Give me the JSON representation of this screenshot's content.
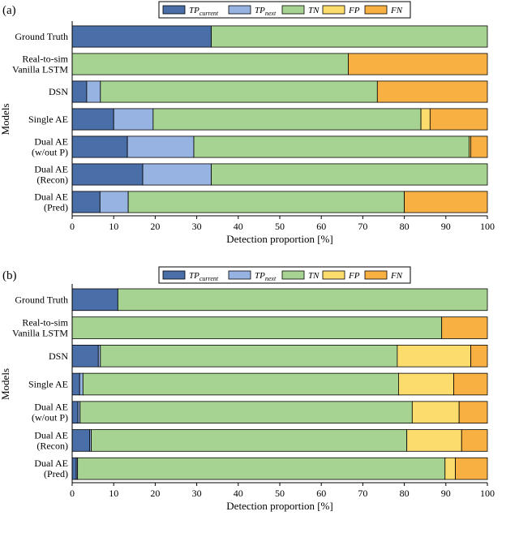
{
  "chart_data": [
    {
      "type": "bar",
      "orientation": "horizontal",
      "stacked": true,
      "panel_label": "(a)",
      "xlabel": "Detection proportion [%]",
      "ylabel": "Models",
      "xlim": [
        0,
        100
      ],
      "xticks": [
        "0",
        "10",
        "20",
        "30",
        "40",
        "50",
        "60",
        "70",
        "80",
        "90",
        "100"
      ],
      "legend": {
        "placement": "top-center",
        "entries": [
          {
            "main": "TP",
            "sub": "current"
          },
          {
            "main": "TP",
            "sub": "next"
          },
          {
            "main": "TN",
            "sub": ""
          },
          {
            "main": "FP",
            "sub": ""
          },
          {
            "main": "FN",
            "sub": ""
          }
        ]
      },
      "categories": [
        [
          "Ground Truth"
        ],
        [
          "Real-to-sim",
          "Vanilla LSTM"
        ],
        [
          "DSN"
        ],
        [
          "Single AE"
        ],
        [
          "Dual AE",
          "(w/out P)"
        ],
        [
          "Dual AE",
          "(Recon)"
        ],
        [
          "Dual AE",
          "(Pred)"
        ]
      ],
      "series": [
        {
          "name": "TP current",
          "values": [
            33.5,
            0,
            3.5,
            10,
            13.3,
            17,
            6.7
          ]
        },
        {
          "name": "TP next",
          "values": [
            0,
            0,
            3.3,
            9.5,
            16,
            16.5,
            6.8
          ]
        },
        {
          "name": "TN",
          "values": [
            66.5,
            66.5,
            66.7,
            64.5,
            66.3,
            66.5,
            66.5
          ]
        },
        {
          "name": "FP",
          "values": [
            0,
            0,
            0,
            2.2,
            0.4,
            0,
            0
          ]
        },
        {
          "name": "FN",
          "values": [
            0,
            33.5,
            26.5,
            13.8,
            4,
            0,
            20
          ]
        }
      ]
    },
    {
      "type": "bar",
      "orientation": "horizontal",
      "stacked": true,
      "panel_label": "(b)",
      "xlabel": "Detection proportion [%]",
      "ylabel": "Models",
      "xlim": [
        0,
        100
      ],
      "xticks": [
        "0",
        "10",
        "20",
        "30",
        "40",
        "50",
        "60",
        "70",
        "80",
        "90",
        "100"
      ],
      "legend": {
        "placement": "top-center",
        "entries": [
          {
            "main": "TP",
            "sub": "current"
          },
          {
            "main": "TP",
            "sub": "next"
          },
          {
            "main": "TN",
            "sub": ""
          },
          {
            "main": "FP",
            "sub": ""
          },
          {
            "main": "FN",
            "sub": ""
          }
        ]
      },
      "categories": [
        [
          "Ground Truth"
        ],
        [
          "Real-to-sim",
          "Vanilla LSTM"
        ],
        [
          "DSN"
        ],
        [
          "Single AE"
        ],
        [
          "Dual AE",
          "(w/out P)"
        ],
        [
          "Dual AE",
          "(Recon)"
        ],
        [
          "Dual AE",
          "(Pred)"
        ]
      ],
      "series": [
        {
          "name": "TP current",
          "values": [
            11,
            0,
            6.3,
            1.8,
            1.4,
            4.2,
            1
          ]
        },
        {
          "name": "TP next",
          "values": [
            0,
            0,
            0.5,
            0.8,
            0.5,
            0.4,
            0.3
          ]
        },
        {
          "name": "TN",
          "values": [
            89,
            89,
            71.5,
            76,
            80,
            76,
            88.5
          ]
        },
        {
          "name": "FP",
          "values": [
            0,
            0,
            17.7,
            13.3,
            11.3,
            13.2,
            2.5
          ]
        },
        {
          "name": "FN",
          "values": [
            0,
            11,
            4,
            8.1,
            6.8,
            6.2,
            7.7
          ]
        }
      ]
    }
  ],
  "colors": {
    "tp_current": "#4a6ea8",
    "tp_next": "#97b3e1",
    "tn": "#a7d392",
    "fp": "#fddc6e",
    "fn": "#f9b042",
    "stroke": "#000000"
  }
}
